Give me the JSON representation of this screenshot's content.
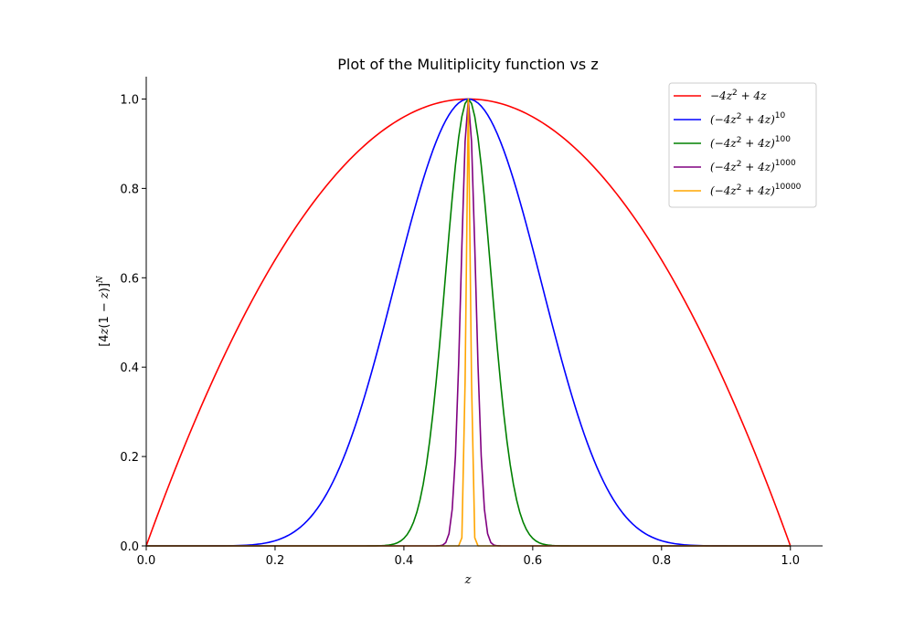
{
  "chart_data": {
    "type": "line",
    "title": "Plot of the Mulitiplicity function vs z",
    "xlabel": "z",
    "ylabel": "[4z(1 − z)]^N",
    "xlim": [
      0.0,
      1.05
    ],
    "ylim": [
      0.0,
      1.05
    ],
    "grid": false,
    "legend_position": "top-right",
    "x_ticks": [
      {
        "value": 0.0,
        "label": "0.0"
      },
      {
        "value": 0.2,
        "label": "0.2"
      },
      {
        "value": 0.4,
        "label": "0.4"
      },
      {
        "value": 0.6,
        "label": "0.6"
      },
      {
        "value": 0.8,
        "label": "0.8"
      },
      {
        "value": 1.0,
        "label": "1.0"
      }
    ],
    "y_ticks": [
      {
        "value": 0.0,
        "label": "0.0"
      },
      {
        "value": 0.2,
        "label": "0.2"
      },
      {
        "value": 0.4,
        "label": "0.4"
      },
      {
        "value": 0.6,
        "label": "0.6"
      },
      {
        "value": 0.8,
        "label": "0.8"
      },
      {
        "value": 1.0,
        "label": "1.0"
      }
    ],
    "function": "(-4z^2 + 4z)^N",
    "x_range": [
      0.0,
      1.0
    ],
    "sample_count": 201,
    "series": [
      {
        "name": "−4z² + 4z",
        "base": "−4z",
        "exp1": "2",
        "rest": " + 4z",
        "power": "",
        "exponent": 1,
        "color": "#ff0000"
      },
      {
        "name": "(−4z² + 4z)^10",
        "base": "(−4z",
        "exp1": "2",
        "rest": " + 4z)",
        "power": "10",
        "exponent": 10,
        "color": "#0000ff"
      },
      {
        "name": "(−4z² + 4z)^100",
        "base": "(−4z",
        "exp1": "2",
        "rest": " + 4z)",
        "power": "100",
        "exponent": 100,
        "color": "#008000"
      },
      {
        "name": "(−4z² + 4z)^1000",
        "base": "(−4z",
        "exp1": "2",
        "rest": " + 4z)",
        "power": "1000",
        "exponent": 1000,
        "color": "#800080"
      },
      {
        "name": "(−4z² + 4z)^10000",
        "base": "(−4z",
        "exp1": "2",
        "rest": " + 4z)",
        "power": "10000",
        "exponent": 10000,
        "color": "#ffa500"
      }
    ]
  }
}
